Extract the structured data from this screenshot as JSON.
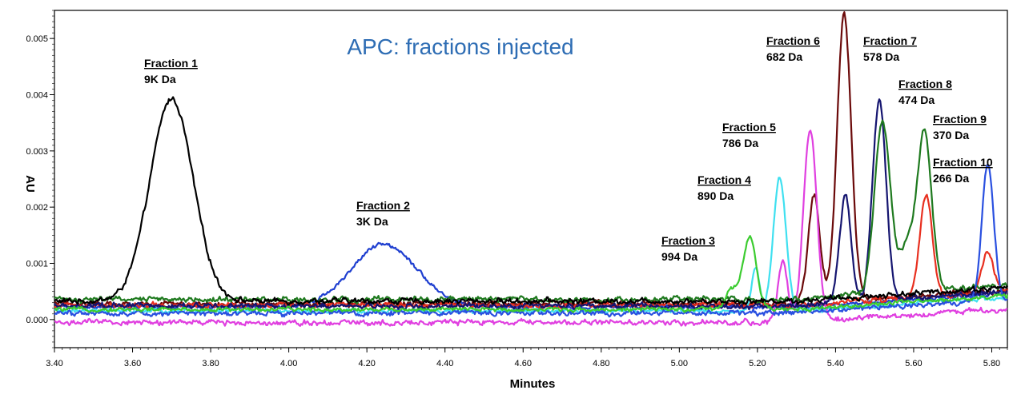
{
  "chart_data": {
    "type": "line",
    "title": "APC: fractions injected",
    "xlabel": "Minutes",
    "ylabel": "AU",
    "xlim": [
      3.4,
      5.84
    ],
    "ylim": [
      -0.0005,
      0.0055
    ],
    "xticks": [
      "3.40",
      "3.60",
      "3.80",
      "4.00",
      "4.20",
      "4.40",
      "4.60",
      "4.80",
      "5.00",
      "5.20",
      "5.40",
      "5.60",
      "5.80"
    ],
    "yticks": [
      "0.000",
      "0.001",
      "0.002",
      "0.003",
      "0.004",
      "0.005"
    ],
    "grid": false,
    "series": [
      {
        "name": "Fraction 1",
        "mw": "9K Da",
        "color": "#000000",
        "baseline": 0.00033,
        "noise": 4e-05,
        "peaks": [
          {
            "x": 3.7,
            "h": 0.0036,
            "w": 0.055
          }
        ]
      },
      {
        "name": "Fraction 2",
        "mw": "3K Da",
        "color": "#1f3fd0",
        "baseline": 0.00022,
        "noise": 3e-05,
        "peaks": [
          {
            "x": 4.245,
            "h": 0.00112,
            "w": 0.085
          }
        ]
      },
      {
        "name": "Fraction 3",
        "mw": "994 Da",
        "color": "#3ccc30",
        "baseline": 0.00018,
        "noise": 3e-05,
        "peaks": [
          {
            "x": 5.18,
            "h": 0.00128,
            "w": 0.017
          },
          {
            "x": 5.135,
            "h": 0.00035,
            "w": 0.015
          }
        ]
      },
      {
        "name": "Fraction 4",
        "mw": "890 Da",
        "color": "#3fe0f0",
        "baseline": 0.00015,
        "noise": 3e-05,
        "peaks": [
          {
            "x": 5.257,
            "h": 0.0024,
            "w": 0.016
          },
          {
            "x": 5.195,
            "h": 0.00075,
            "w": 0.01
          }
        ]
      },
      {
        "name": "Fraction 5",
        "mw": "786 Da",
        "color": "#e040e0",
        "baseline": -5e-05,
        "noise": 4e-05,
        "peaks": [
          {
            "x": 5.335,
            "h": 0.0034,
            "w": 0.017
          },
          {
            "x": 5.265,
            "h": 0.0011,
            "w": 0.012
          }
        ]
      },
      {
        "name": "Fraction 6",
        "mw": "682 Da",
        "color": "#6b0a0a",
        "baseline": 0.00028,
        "noise": 4e-05,
        "peaks": [
          {
            "x": 5.422,
            "h": 0.0051,
            "w": 0.018
          },
          {
            "x": 5.345,
            "h": 0.0019,
            "w": 0.015
          }
        ]
      },
      {
        "name": "Fraction 7",
        "mw": "578 Da",
        "color": "#151570",
        "baseline": 0.00024,
        "noise": 4e-05,
        "peaks": [
          {
            "x": 5.512,
            "h": 0.0036,
            "w": 0.017
          },
          {
            "x": 5.425,
            "h": 0.0019,
            "w": 0.015
          }
        ]
      },
      {
        "name": "Fraction 8",
        "mw": "474 Da",
        "color": "#1f7a1f",
        "baseline": 0.00036,
        "noise": 4e-05,
        "peaks": [
          {
            "x": 5.52,
            "h": 0.0031,
            "w": 0.02
          },
          {
            "x": 5.628,
            "h": 0.0028,
            "w": 0.018
          },
          {
            "x": 5.585,
            "h": 0.0008,
            "w": 0.02
          }
        ]
      },
      {
        "name": "Fraction 9",
        "mw": "370 Da",
        "color": "#e83020",
        "baseline": 0.00026,
        "noise": 4e-05,
        "peaks": [
          {
            "x": 5.632,
            "h": 0.0018,
            "w": 0.016
          },
          {
            "x": 5.79,
            "h": 0.0007,
            "w": 0.015
          }
        ]
      },
      {
        "name": "Fraction 10",
        "mw": "266 Da",
        "color": "#2a50e0",
        "baseline": 0.00012,
        "noise": 4e-05,
        "peaks": [
          {
            "x": 5.79,
            "h": 0.0024,
            "w": 0.015
          }
        ]
      }
    ]
  }
}
